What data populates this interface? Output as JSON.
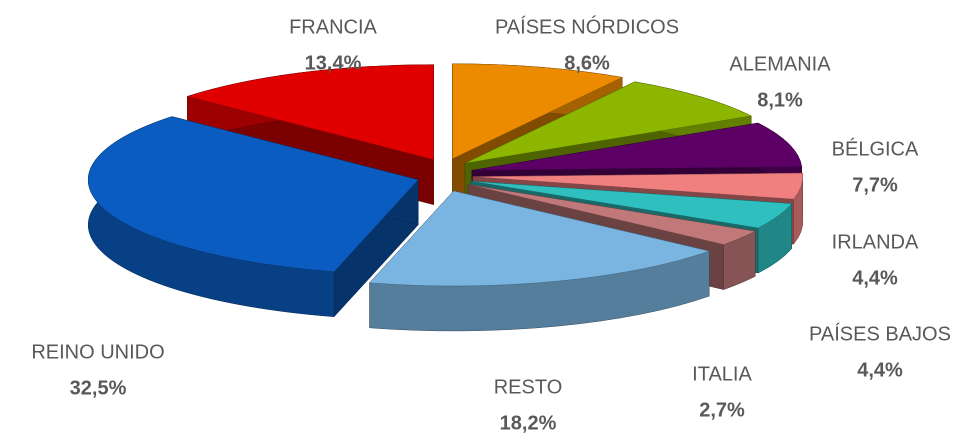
{
  "chart_data": {
    "type": "pie3d",
    "categories": [
      "PAÍSES NÓRDICOS",
      "ALEMANIA",
      "BÉLGICA",
      "IRLANDA",
      "PAÍSES BAJOS",
      "ITALIA",
      "RESTO",
      "REINO UNIDO",
      "FRANCIA"
    ],
    "values": [
      8.6,
      8.1,
      7.7,
      4.4,
      4.4,
      2.7,
      18.2,
      32.5,
      13.4
    ],
    "value_labels": [
      "8,6%",
      "8,1%",
      "7,7%",
      "4,4%",
      "4,4%",
      "2,7%",
      "18,2%",
      "32,5%",
      "13,4%"
    ],
    "colors": [
      "#ed8b00",
      "#8db600",
      "#5c0066",
      "#f08080",
      "#2fbfbf",
      "#c07878",
      "#7ab4e0",
      "#0b5cc0",
      "#e00000"
    ]
  }
}
